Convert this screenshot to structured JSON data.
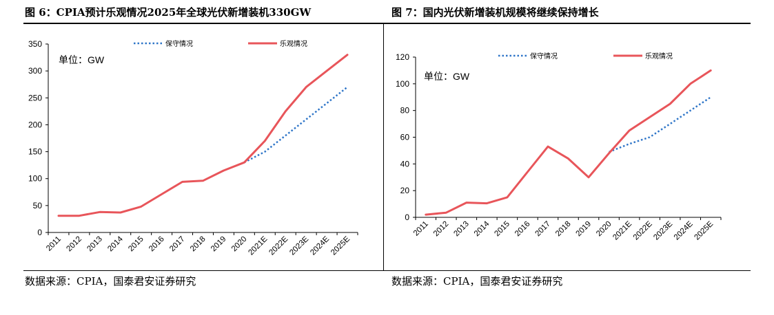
{
  "figures": [
    {
      "title": "图 6：CPIA预计乐观情况2025年全球光伏新增装机330GW",
      "source": "数据来源：CPIA，国泰君安证券研究"
    },
    {
      "title": "图 7：国内光伏新增装机规模将继续保持增长",
      "source": "数据来源：CPIA，国泰君安证券研究"
    }
  ],
  "colors": {
    "conservative": "#2e75c8",
    "optimistic": "#e8555a",
    "axis": "#000000"
  },
  "chart_data": [
    {
      "type": "line",
      "unit_label": "单位：GW",
      "categories": [
        "2011",
        "2012",
        "2013",
        "2014",
        "2015",
        "2016",
        "2017",
        "2018",
        "2019",
        "2020",
        "2021E",
        "2022E",
        "2023E",
        "2024E",
        "2025E"
      ],
      "ylim": [
        0,
        350
      ],
      "yticks": [
        0,
        50,
        100,
        150,
        200,
        250,
        300,
        350
      ],
      "grid": false,
      "legend_position": "top",
      "series": [
        {
          "name": "保守情况",
          "style": "dotted",
          "values": [
            null,
            null,
            null,
            null,
            null,
            null,
            null,
            null,
            null,
            130,
            150,
            180,
            210,
            240,
            270
          ]
        },
        {
          "name": "乐观情况",
          "style": "solid",
          "values": [
            31,
            31,
            38,
            37,
            48,
            71,
            94,
            96,
            115,
            130,
            170,
            225,
            270,
            300,
            330
          ]
        }
      ]
    },
    {
      "type": "line",
      "unit_label": "单位：GW",
      "categories": [
        "2011",
        "2012",
        "2013",
        "2014",
        "2015",
        "2016",
        "2017",
        "2018",
        "2019",
        "2020",
        "2021E",
        "2022E",
        "2023E",
        "2024E",
        "2025E"
      ],
      "ylim": [
        0,
        120
      ],
      "yticks": [
        0,
        20,
        40,
        60,
        80,
        100,
        120
      ],
      "grid": false,
      "legend_position": "top",
      "series": [
        {
          "name": "保守情况",
          "style": "dotted",
          "values": [
            null,
            null,
            null,
            null,
            null,
            null,
            null,
            null,
            null,
            49,
            55,
            60,
            70,
            80,
            90
          ]
        },
        {
          "name": "乐观情况",
          "style": "solid",
          "values": [
            2,
            3.5,
            11,
            10.5,
            15,
            34,
            53,
            44,
            30,
            48,
            65,
            75,
            85,
            100,
            110
          ]
        }
      ]
    }
  ]
}
